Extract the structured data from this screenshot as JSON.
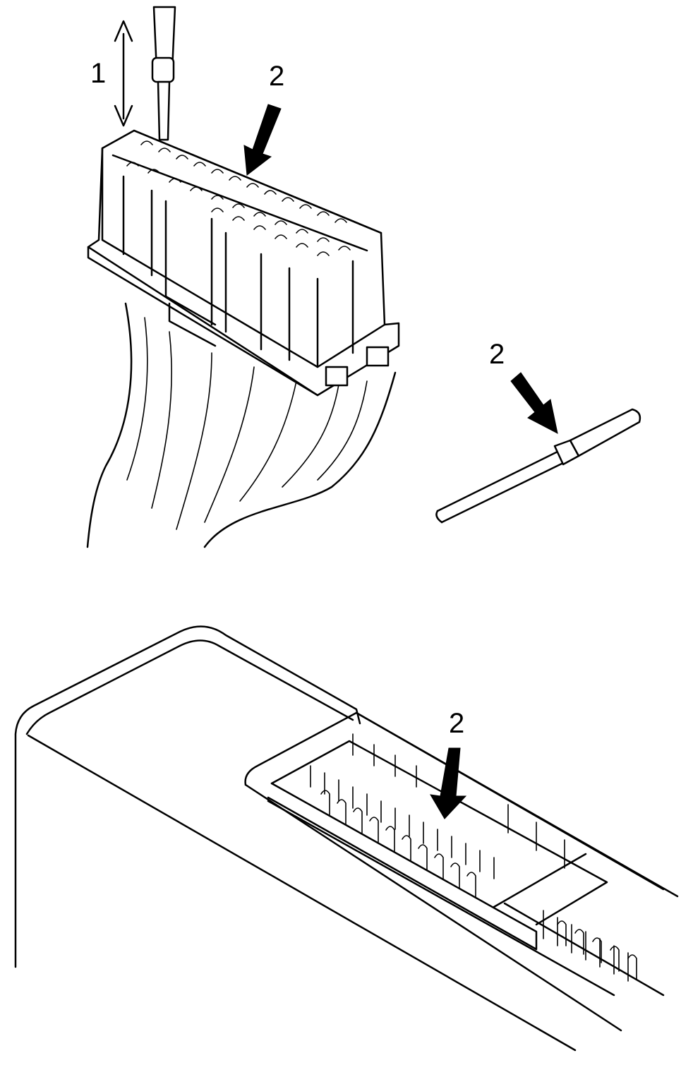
{
  "callouts": {
    "lift_direction": "1",
    "release_tab_connector": "2",
    "release_tab_terminal": "2",
    "release_tab_ecu": "2"
  },
  "colors": {
    "line": "#000000",
    "background": "#ffffff"
  },
  "icons": [
    "double-arrow-icon",
    "arrow-icon"
  ]
}
